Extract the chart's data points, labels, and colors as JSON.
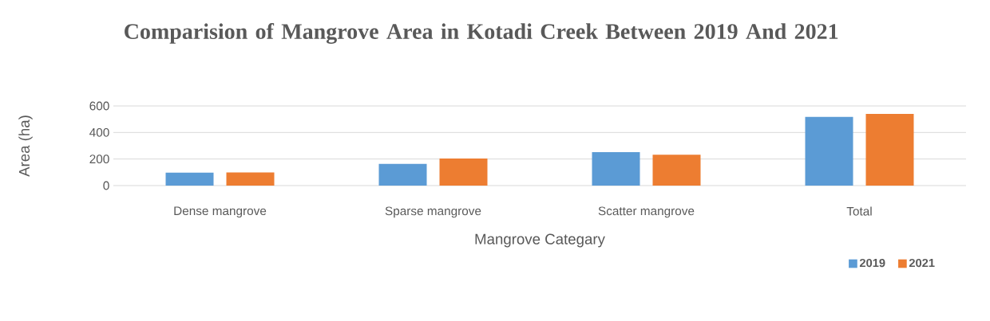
{
  "chart_data": {
    "type": "bar",
    "title": "Comparision of Mangrove Area in Kotadi Creek Between 2019 And 2021",
    "xlabel": "Mangrove Categary",
    "ylabel": "Area (ha)",
    "categories": [
      "Dense mangrove",
      "Sparse mangrove",
      "Scatter mangrove",
      "Total"
    ],
    "series": [
      {
        "name": "2019",
        "color": "#5b9bd5",
        "values": [
          97,
          163,
          252,
          518
        ]
      },
      {
        "name": "2021",
        "color": "#ed7d31",
        "values": [
          99,
          204,
          232,
          540
        ]
      }
    ],
    "ylim": [
      0,
      600
    ],
    "yticks": [
      0,
      200,
      400,
      600
    ],
    "grid": "y",
    "legend": "bottom right"
  }
}
